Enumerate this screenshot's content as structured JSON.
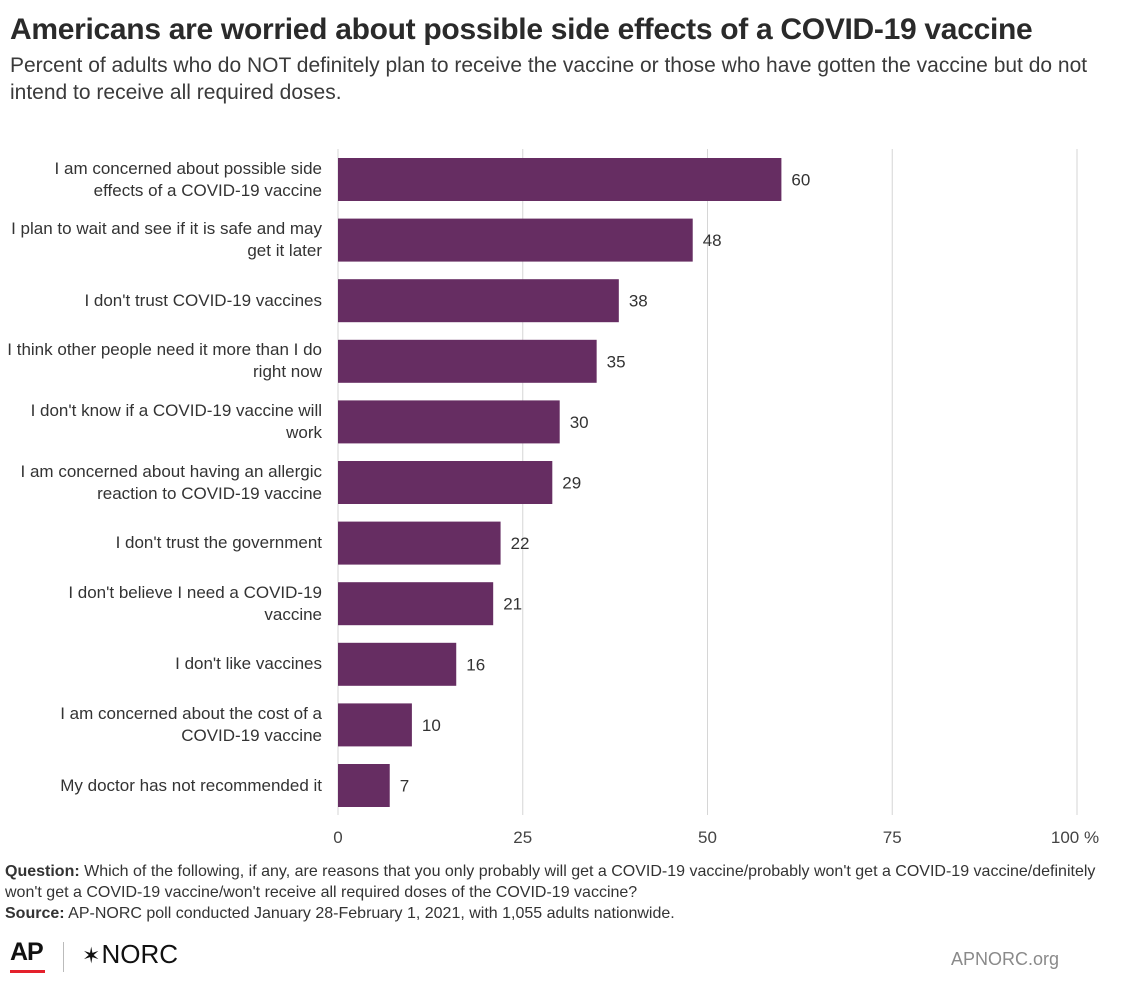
{
  "header": {
    "title": "Americans are worried about possible side effects of a COVID-19 vaccine",
    "subtitle": "Percent of adults who do NOT definitely plan to receive the vaccine or those who have gotten the vaccine but do not intend to receive all required doses."
  },
  "chart_data": {
    "type": "bar",
    "orientation": "horizontal",
    "categories": [
      "I am concerned about possible side effects of a COVID-19 vaccine",
      "I plan to wait and see if it is safe and may get it later",
      "I don't trust COVID-19 vaccines",
      "I think other people need it more than I do right now",
      "I don't know if a COVID-19 vaccine will work",
      "I am concerned about having an allergic reaction to COVID-19 vaccine",
      "I don't trust the government",
      "I don't believe I need a COVID-19 vaccine",
      "I don't like vaccines",
      "I am concerned about the cost of a COVID-19 vaccine",
      "My doctor has not recommended it"
    ],
    "values": [
      60,
      48,
      38,
      35,
      30,
      29,
      22,
      21,
      16,
      10,
      7
    ],
    "xlim": [
      0,
      100
    ],
    "xticks": [
      "0",
      "25",
      "50",
      "75",
      "100 %"
    ],
    "xtick_values": [
      0,
      25,
      50,
      75,
      100
    ],
    "bar_color": "#662d62",
    "grid": true
  },
  "footer": {
    "question_label": "Question:",
    "question_text": "Which of the following, if any, are reasons that you only probably will get a COVID-19 vaccine/probably won't get a COVID-19 vaccine/definitely won't get a COVID-19 vaccine/won't receive all required doses of the COVID-19 vaccine?",
    "source_label": "Source:",
    "source_text": "AP-NORC poll conducted January 28-February 1, 2021, with 1,055 adults nationwide."
  },
  "branding": {
    "ap_logo": "AP",
    "norc_star": "✶",
    "norc_logo": "NORC",
    "site": "APNORC.org"
  }
}
